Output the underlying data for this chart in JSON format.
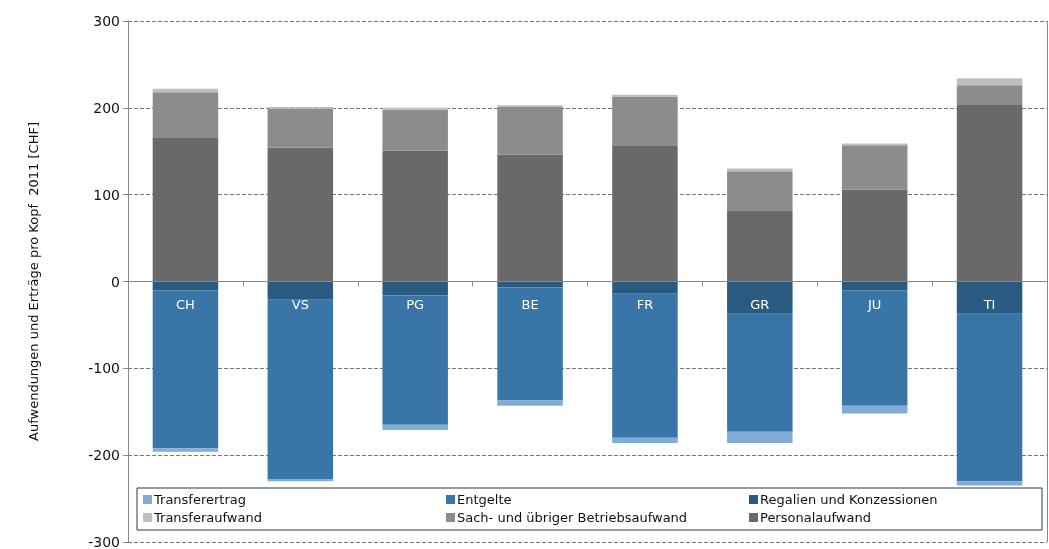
{
  "chart_data": {
    "type": "bar",
    "stacked": true,
    "ylabel": "Aufwendungen und Erträge pro Kopf  2011 [CHF]",
    "categories": [
      "CH",
      "VS",
      "PG",
      "BE",
      "FR",
      "GR",
      "JU",
      "TI"
    ],
    "series": [
      {
        "name": "Regalien und Konzessionen",
        "color": "#2a5a80",
        "values": [
          -10,
          -21,
          -16,
          -7,
          -14,
          -37,
          -10,
          -37
        ]
      },
      {
        "name": "Entgelte",
        "color": "#3a75a8",
        "values": [
          -182,
          -207,
          -149,
          -130,
          -166,
          -136,
          -133,
          -193
        ]
      },
      {
        "name": "Transferertrag",
        "color": "#7fadd6",
        "values": [
          -4,
          -2,
          -6,
          -6,
          -6,
          -13,
          -9,
          -5
        ]
      },
      {
        "name": "Personalaufwand",
        "color": "#696969",
        "values": [
          166,
          154,
          151,
          146,
          157,
          82,
          106,
          204
        ]
      },
      {
        "name": "Sach- und übriger Betriebsaufwand",
        "color": "#8c8c8c",
        "values": [
          52,
          45,
          47,
          55,
          56,
          45,
          51,
          22
        ]
      },
      {
        "name": "Transferaufwand",
        "color": "#bfbfbf",
        "values": [
          4,
          2,
          2,
          2,
          2,
          3,
          2,
          8
        ]
      }
    ],
    "ylim": [
      -300,
      300
    ],
    "yticks": [
      -300,
      -200,
      -100,
      0,
      100,
      200,
      300
    ],
    "grid": "y",
    "legend": "bottom"
  }
}
